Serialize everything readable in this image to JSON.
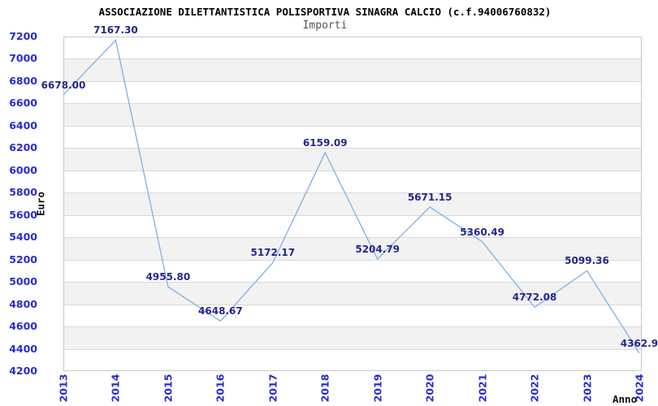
{
  "chart_data": {
    "type": "line",
    "title": "ASSOCIAZIONE DILETTANTISTICA POLISPORTIVA SINAGRA CALCIO (c.f.94006760832)",
    "subtitle": "Importi",
    "xlabel": "Anno",
    "ylabel": "Euro",
    "categories": [
      "2013",
      "2014",
      "2015",
      "2016",
      "2017",
      "2018",
      "2019",
      "2020",
      "2021",
      "2022",
      "2023",
      "2024"
    ],
    "series": [
      {
        "name": "Importi",
        "values": [
          6678.0,
          7167.3,
          4955.8,
          4648.67,
          5172.17,
          6159.09,
          5204.79,
          5671.15,
          5360.49,
          4772.08,
          5099.36,
          4362.9
        ],
        "point_labels": [
          "6678.00",
          "7167.30",
          "4955.80",
          "4648.67",
          "5172.17",
          "6159.09",
          "5204.79",
          "5671.15",
          "5360.49",
          "4772.08",
          "5099.36",
          "4362.9"
        ]
      }
    ],
    "ylim": [
      4200,
      7200
    ],
    "ytick_step": 200,
    "ytick_labels": [
      "7200",
      "7000",
      "6800",
      "6600",
      "6400",
      "6200",
      "6000",
      "5800",
      "5600",
      "5400",
      "5200",
      "5000",
      "4800",
      "4600",
      "4400",
      "4200"
    ],
    "grid": "horizontal gridlines with alternating shaded bands",
    "legend_position": "none",
    "colors": {
      "line": "#7fb0e2",
      "tick_label": "#2a2ad4",
      "data_label": "#26268c",
      "gridline": "#d9d9d9",
      "band": "#f2f2f2",
      "plot_border": "#c8c8c8",
      "title": "#000000",
      "subtitle": "#555555",
      "axis_title": "#111111"
    }
  }
}
